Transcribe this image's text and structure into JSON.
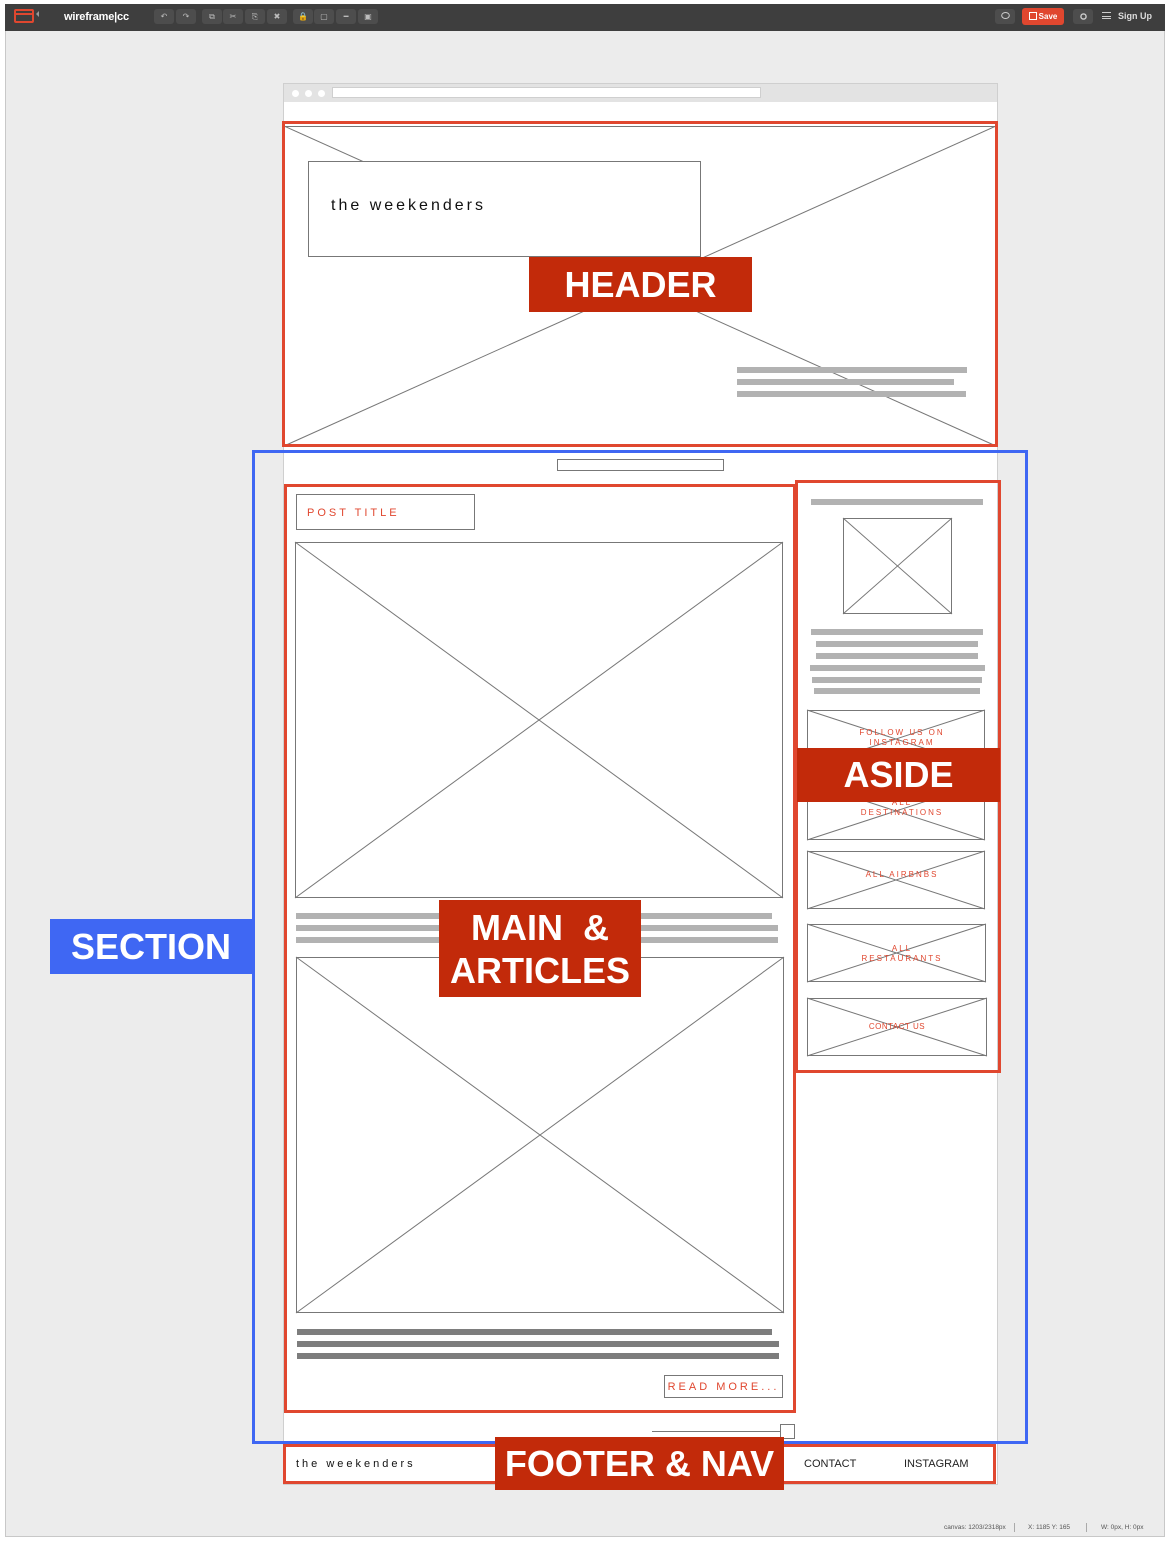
{
  "app": {
    "brand": "wireframe|cc",
    "save_label": "Save",
    "signup_label": "Sign Up",
    "toolbar_icons": [
      "undo-icon",
      "redo-icon",
      "duplicate-icon",
      "cut-icon",
      "paste-icon",
      "delete-icon",
      "lock-icon",
      "rectangle-icon",
      "line-icon",
      "frame-icon"
    ],
    "toolbar_glyphs": [
      "↶",
      "↷",
      "⧉",
      "✂",
      "⎘",
      "✖",
      "🔒",
      "▢",
      "━",
      "▣"
    ],
    "accent_color": "#e0472f"
  },
  "wireframe": {
    "site_title": "the weekenders",
    "post_title": "POST TITLE",
    "read_more": "READ MORE...",
    "aside_buttons": [
      {
        "label": "FOLLOW US ON INSTAGRAM"
      },
      {
        "label": "ALL DESTINATIONS"
      },
      {
        "label": "ALL AIRBNBS"
      },
      {
        "label": "ALL RESTAURANTS"
      },
      {
        "label": "CONTACT US"
      }
    ],
    "footer": {
      "title": "the weekenders",
      "links": [
        "CONTACT",
        "INSTAGRAM"
      ]
    }
  },
  "annotations": {
    "header": "HEADER",
    "aside": "ASIDE",
    "main_line1": "MAIN  &",
    "main_line2": "ARTICLES",
    "section": "SECTION",
    "footer": "FOOTER & NAV",
    "annotation_color": "#c22a0a",
    "section_color": "#3f67f3"
  },
  "statusbar": {
    "canvas": "canvas: 1203/2318px",
    "coords": "X: 1185 Y: 165",
    "size": "W: 0px, H: 0px"
  }
}
